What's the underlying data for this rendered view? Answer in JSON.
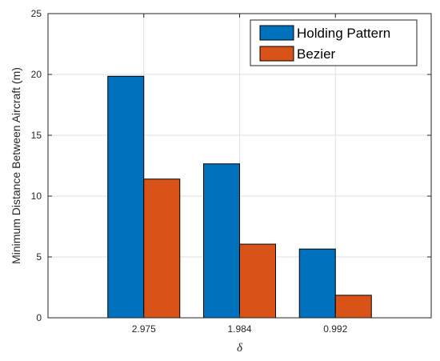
{
  "chart_data": {
    "type": "bar",
    "categories": [
      "2.975",
      "1.984",
      "0.992"
    ],
    "series": [
      {
        "name": "Holding Pattern",
        "values": [
          19.85,
          12.65,
          5.65
        ],
        "color": "#0072BD"
      },
      {
        "name": "Bezier",
        "values": [
          11.4,
          6.05,
          1.85
        ],
        "color": "#D95319"
      }
    ],
    "title": "",
    "xlabel": "δ",
    "ylabel": "Minimum Distance Between Aircraft (m)",
    "ylim": [
      0,
      25
    ],
    "yticks": [
      "0",
      "5",
      "10",
      "15",
      "20",
      "25"
    ],
    "grid": true,
    "legend_position": "top-right"
  }
}
